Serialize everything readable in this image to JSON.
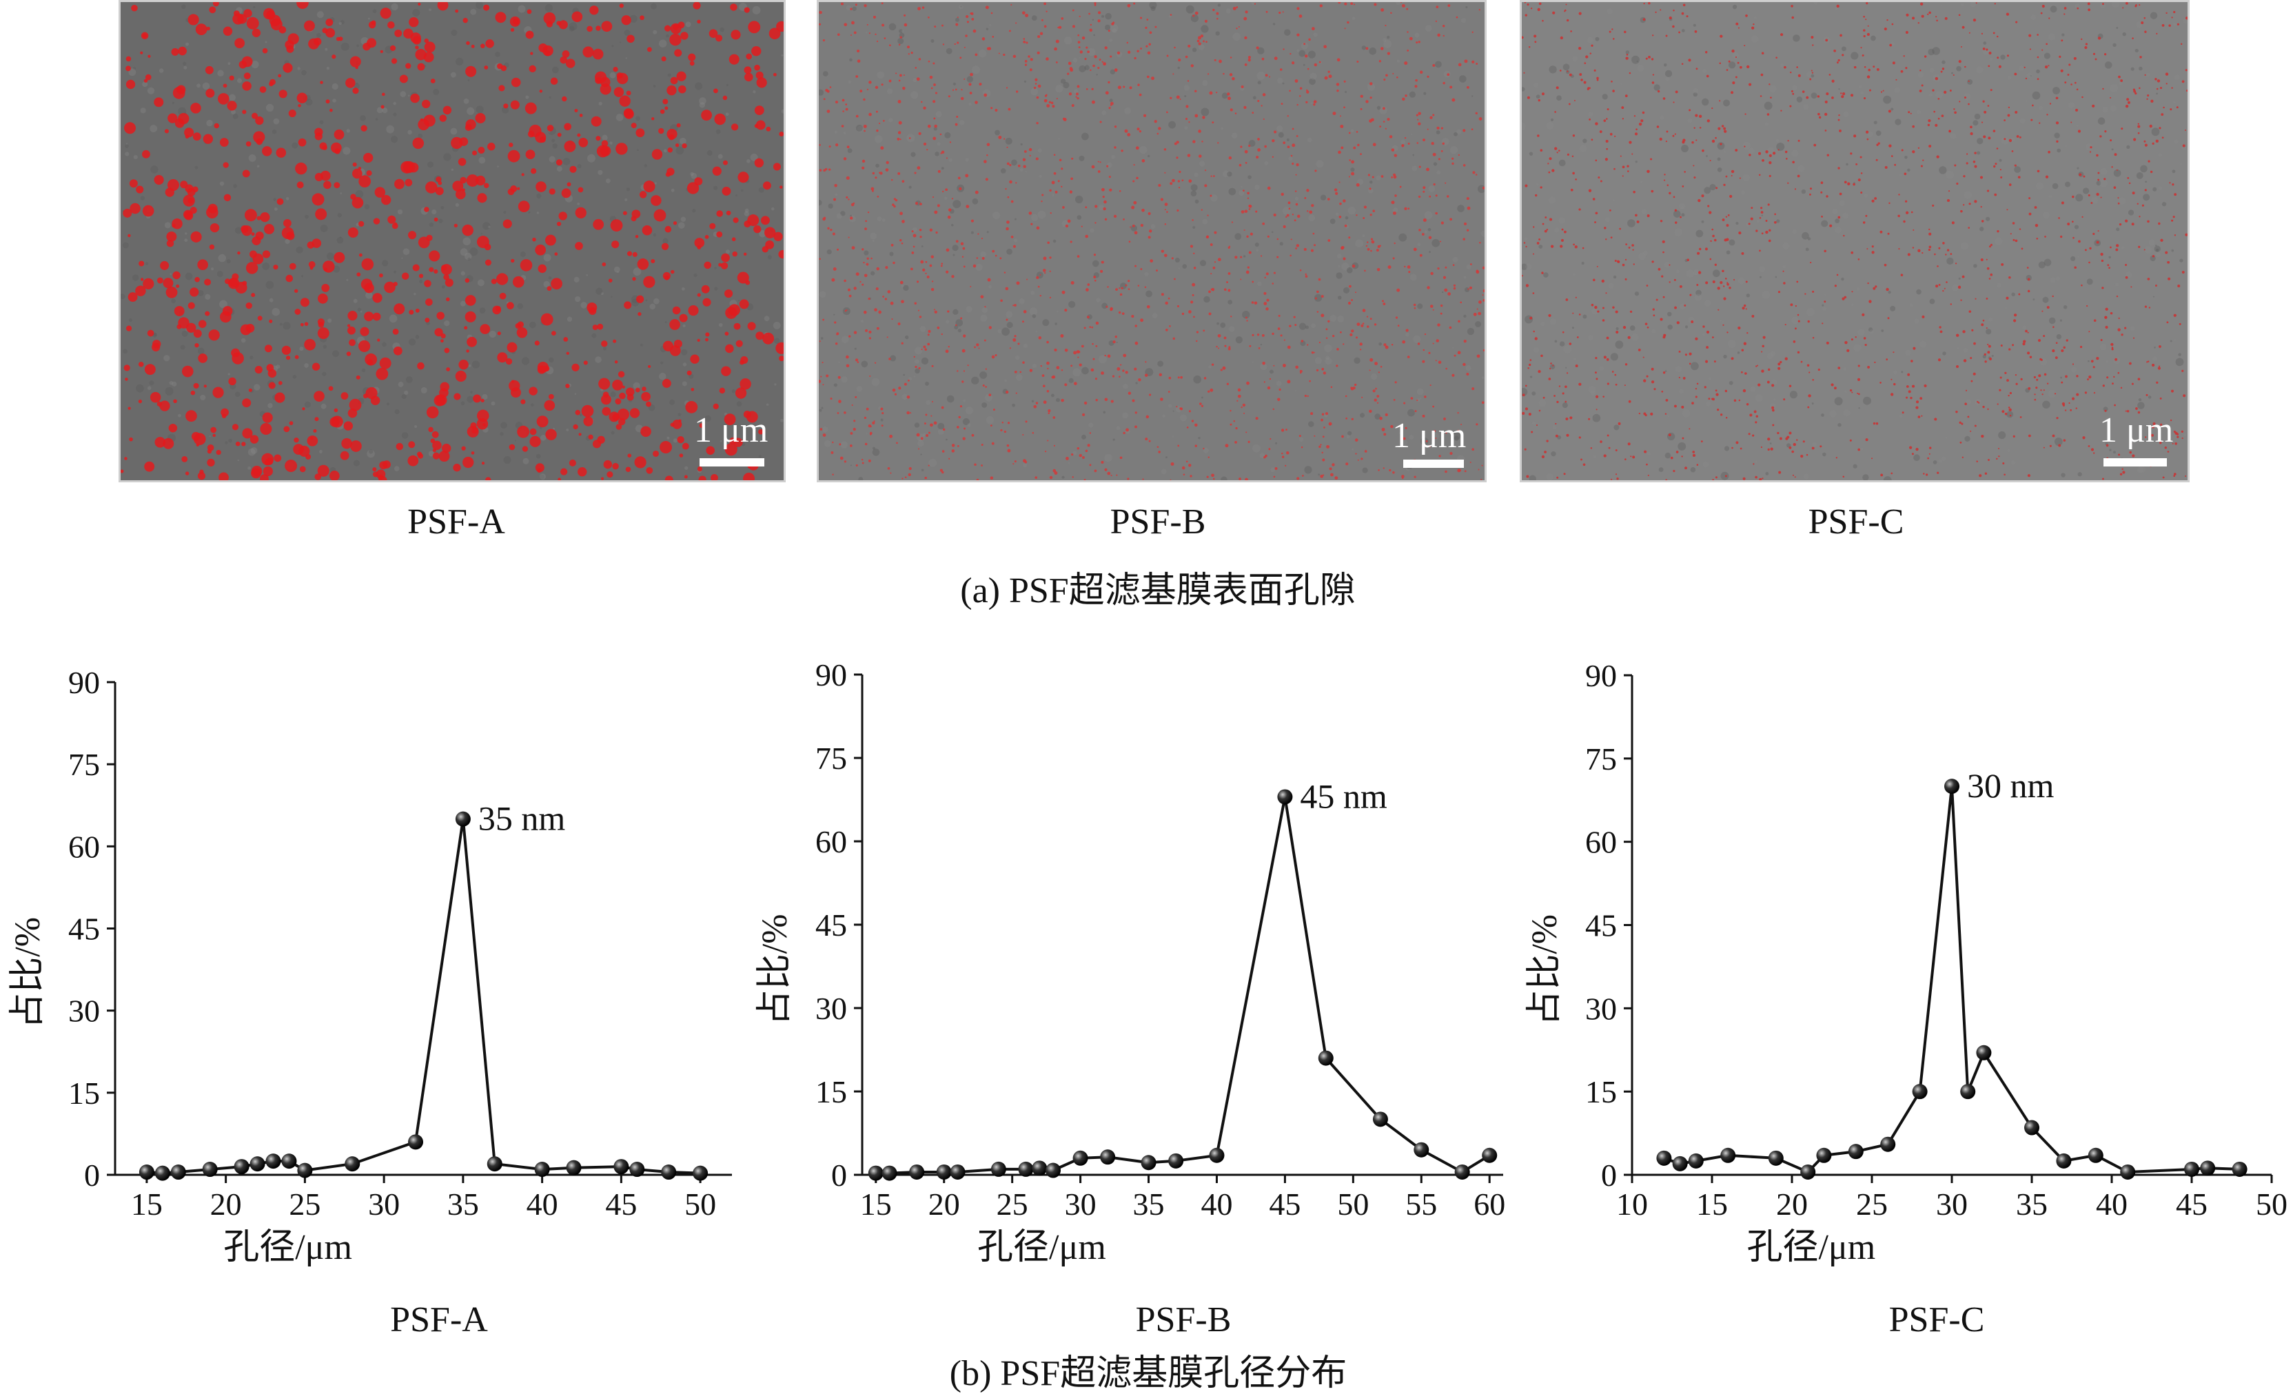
{
  "panel_a": {
    "images": [
      {
        "label": "PSF-A",
        "scale": "1 μm",
        "pore_color": "#e31a1c"
      },
      {
        "label": "PSF-B",
        "scale": "1 μm",
        "pore_color": "#d23a3a"
      },
      {
        "label": "PSF-C",
        "scale": "1 μm",
        "pore_color": "#cc3030"
      }
    ],
    "caption": "(a) PSF超滤基膜表面孔隙"
  },
  "panel_b": {
    "caption": "(b) PSF超滤基膜孔径分布"
  },
  "chart_data": [
    {
      "type": "line",
      "label": "PSF-A",
      "xlabel": "孔径/μm",
      "ylabel": "占比/%",
      "xlim": [
        13,
        52
      ],
      "ylim": [
        0,
        90
      ],
      "xticks": [
        15,
        20,
        25,
        30,
        35,
        40,
        45,
        50
      ],
      "yticks": [
        0,
        15,
        30,
        45,
        60,
        75,
        90
      ],
      "x": [
        15,
        16,
        17,
        19,
        21,
        22,
        23,
        24,
        25,
        28,
        32,
        35,
        37,
        40,
        42,
        45,
        46,
        48,
        50
      ],
      "y": [
        0.5,
        0.3,
        0.5,
        1,
        1.5,
        2,
        2.5,
        2.5,
        0.8,
        2,
        6,
        65,
        2,
        1,
        1.3,
        1.5,
        1,
        0.5,
        0.3
      ],
      "annotation": "35 nm",
      "annotation_x": 35,
      "annotation_y": 65
    },
    {
      "type": "line",
      "label": "PSF-B",
      "xlabel": "孔径/μm",
      "ylabel": "占比/%",
      "xlim": [
        14,
        61
      ],
      "ylim": [
        0,
        90
      ],
      "xticks": [
        15,
        20,
        25,
        30,
        35,
        40,
        45,
        50,
        55,
        60
      ],
      "yticks": [
        0,
        15,
        30,
        45,
        60,
        75,
        90
      ],
      "x": [
        15,
        16,
        18,
        20,
        21,
        24,
        26,
        27,
        28,
        30,
        32,
        35,
        37,
        40,
        45,
        48,
        52,
        55,
        58,
        60
      ],
      "y": [
        0.3,
        0.3,
        0.5,
        0.5,
        0.5,
        1,
        1,
        1.2,
        0.8,
        3,
        3.2,
        2.2,
        2.5,
        3.5,
        68,
        21,
        10,
        4.5,
        0.5,
        3.5
      ],
      "annotation": "45 nm",
      "annotation_x": 45,
      "annotation_y": 68
    },
    {
      "type": "line",
      "label": "PSF-C",
      "xlabel": "孔径/μm",
      "ylabel": "占比/%",
      "xlim": [
        10,
        50
      ],
      "ylim": [
        0,
        90
      ],
      "xticks": [
        10,
        15,
        20,
        25,
        30,
        35,
        40,
        45,
        50
      ],
      "yticks": [
        0,
        15,
        30,
        45,
        60,
        75,
        90
      ],
      "x": [
        12,
        13,
        14,
        16,
        19,
        21,
        22,
        24,
        26,
        28,
        30,
        31,
        32,
        35,
        37,
        39,
        41,
        45,
        46,
        48
      ],
      "y": [
        3,
        2,
        2.5,
        3.5,
        3,
        0.5,
        3.5,
        4.2,
        5.5,
        15,
        70,
        15,
        22,
        8.5,
        2.5,
        3.5,
        0.5,
        1,
        1.2,
        1
      ],
      "annotation": "30 nm",
      "annotation_x": 30,
      "annotation_y": 70
    }
  ]
}
